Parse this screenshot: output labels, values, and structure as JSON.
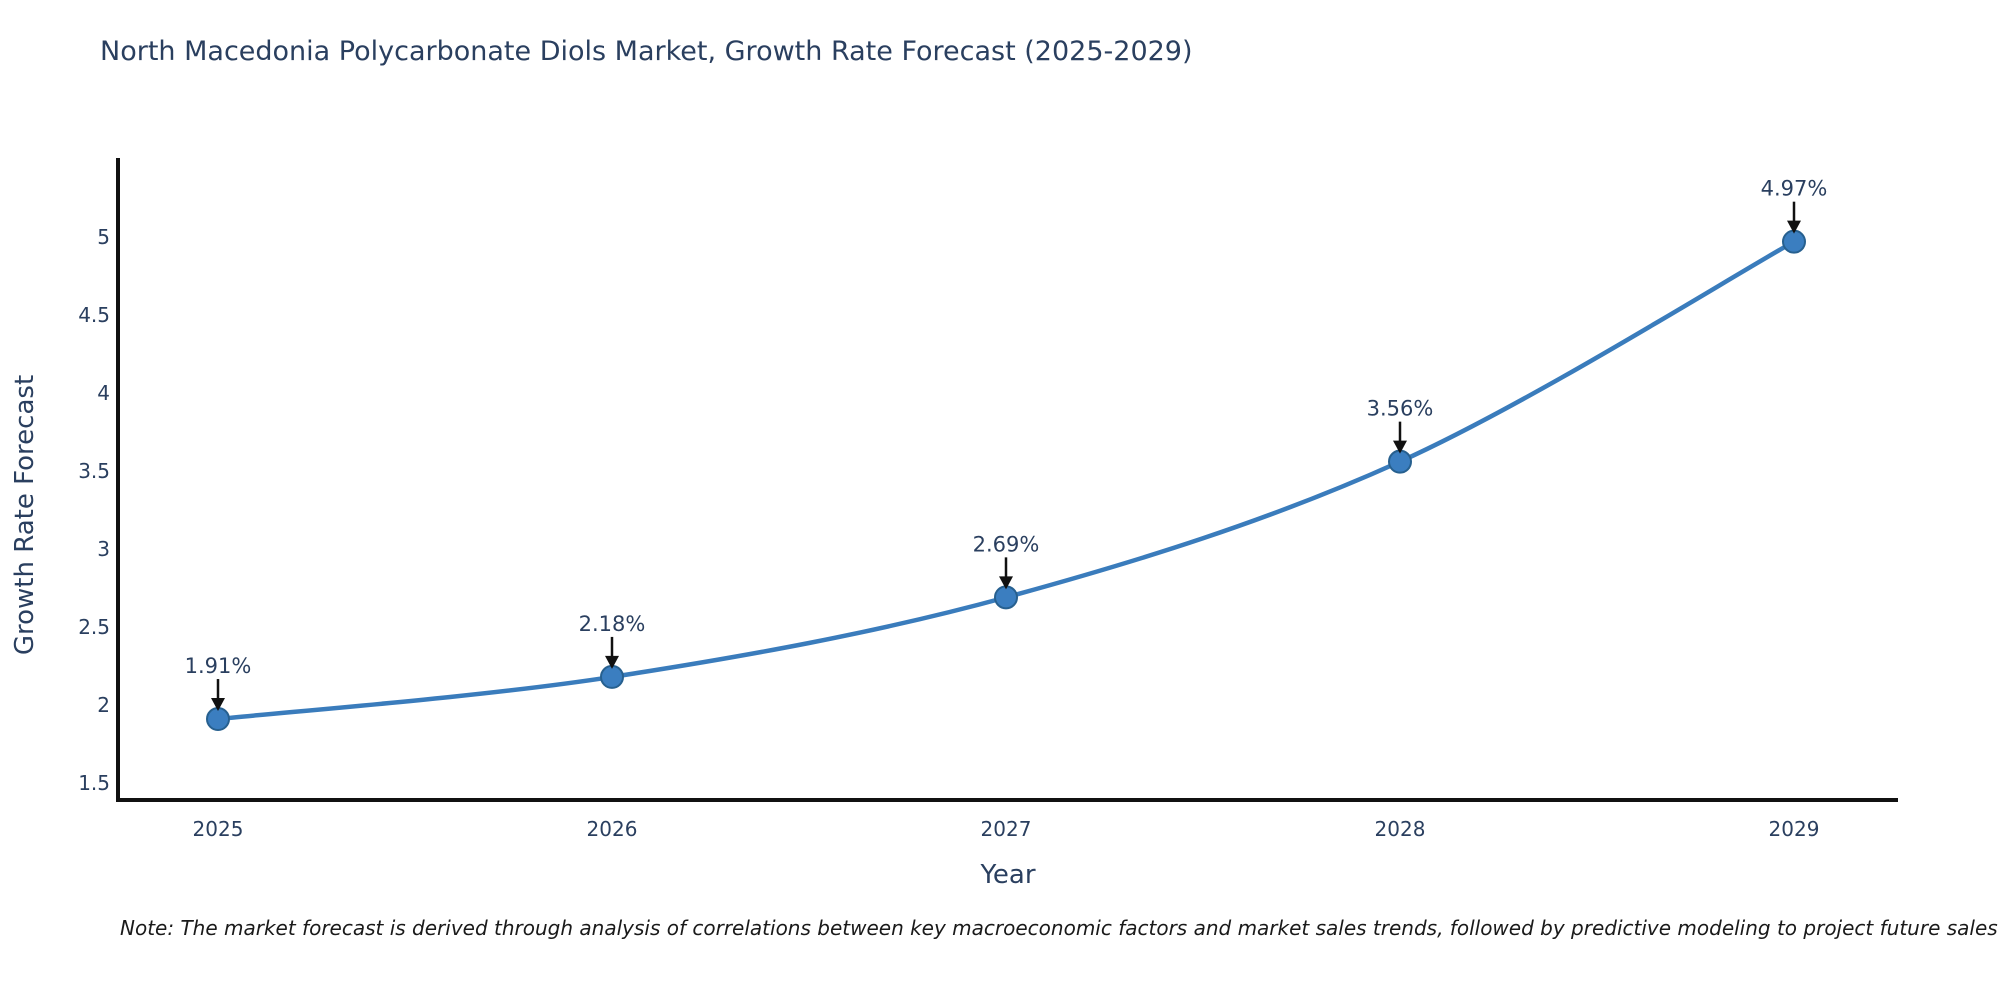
{
  "chart": {
    "title": "North Macedonia Polycarbonate Diols Market, Growth Rate Forecast (2025-2029)",
    "xlabel": "Year",
    "ylabel": "Growth Rate Forecast",
    "note": "Note: The market forecast is derived through analysis of correlations between key macroeconomic factors and market sales trends, followed by predictive modeling to project future sales"
  },
  "chart_data": {
    "type": "line",
    "title": "North Macedonia Polycarbonate Diols Market, Growth Rate Forecast (2025-2029)",
    "xlabel": "Year",
    "ylabel": "Growth Rate Forecast",
    "categories": [
      "2025",
      "2026",
      "2027",
      "2028",
      "2029"
    ],
    "series": [
      {
        "name": "Growth Rate Forecast",
        "values": [
          1.91,
          2.18,
          2.69,
          3.56,
          4.97
        ],
        "point_labels": [
          "1.91%",
          "2.18%",
          "2.69%",
          "3.56%",
          "4.97%"
        ]
      }
    ],
    "y_ticks": [
      1.5,
      2,
      2.5,
      3,
      3.5,
      4,
      4.5,
      5
    ],
    "ylim": [
      1.39,
      5.49
    ],
    "grid": false,
    "legend_visible": false,
    "line_shape": "spline",
    "annotations_arrows": true,
    "colors": {
      "line": "#3a7cbc",
      "marker_fill": "#3b7ec0",
      "marker_edge": "#27608f",
      "text": "#2a3f5f",
      "axis": "#111111",
      "arrow": "#111111",
      "note_text": "#1a1a1a",
      "background": "#ffffff"
    }
  }
}
